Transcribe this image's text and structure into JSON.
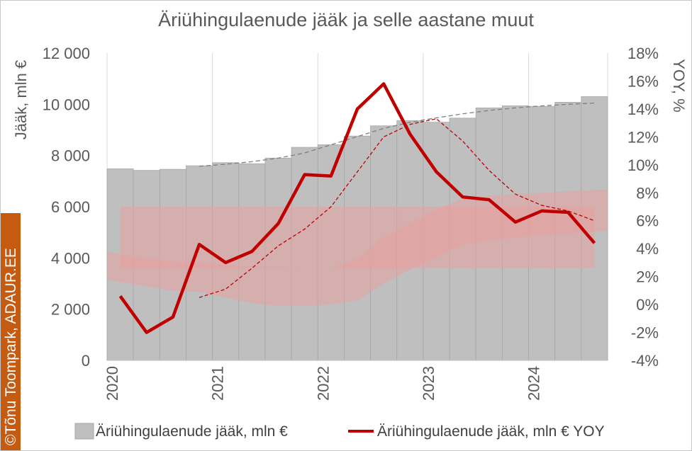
{
  "chart_data": {
    "type": "bar",
    "title": "Äriühingulaenude jääk ja selle aastane muut",
    "ylabel_left": "Jääk, mln €",
    "ylabel_right": "YOY, %",
    "ylim_left": [
      0,
      12000
    ],
    "ylim_right": [
      -4,
      18
    ],
    "left_ticks": [
      "12 000",
      "10 000",
      "8 000",
      "6 000",
      "4 000",
      "2 000",
      "0"
    ],
    "right_ticks": [
      "18%",
      "16%",
      "14%",
      "12%",
      "10%",
      "8%",
      "6%",
      "4%",
      "2%",
      "0%",
      "-2%",
      "-4%"
    ],
    "year_labels": [
      "2020",
      "2021",
      "2022",
      "2023",
      "2024"
    ],
    "quarters": [
      "2020Q1",
      "2020Q2",
      "2020Q3",
      "2020Q4",
      "2021Q1",
      "2021Q2",
      "2021Q3",
      "2021Q4",
      "2022Q1",
      "2022Q2",
      "2022Q3",
      "2022Q4",
      "2023Q1",
      "2023Q2",
      "2023Q3",
      "2023Q4",
      "2024Q1",
      "2024Q2",
      "2024Q3"
    ],
    "series": [
      {
        "name": "Äriühingulaenude jääk, mln €",
        "kind": "bar",
        "axis": "left",
        "color": "#bfbfbf",
        "values": [
          7480,
          7420,
          7460,
          7600,
          7720,
          7680,
          7900,
          8320,
          8420,
          8760,
          9160,
          9360,
          9300,
          9460,
          9860,
          9940,
          9920,
          10080,
          10300
        ]
      },
      {
        "name": "Äriühingulaenude jääk, mln € YOY",
        "kind": "line",
        "axis": "right",
        "color": "#c00000",
        "values": [
          0.6,
          -2.0,
          -0.9,
          4.3,
          3.0,
          3.8,
          5.8,
          9.3,
          9.2,
          14.0,
          15.8,
          12.2,
          9.5,
          7.7,
          7.5,
          5.9,
          6.7,
          6.6,
          4.4
        ]
      }
    ],
    "trend_left": {
      "color": "#7f7f7f",
      "x": [
        "2020Q4",
        "2021Q1",
        "2021Q2",
        "2021Q3",
        "2021Q4",
        "2022Q1",
        "2022Q2",
        "2022Q3",
        "2022Q4",
        "2023Q1",
        "2023Q2",
        "2023Q3",
        "2023Q4",
        "2024Q1",
        "2024Q2",
        "2024Q3"
      ],
      "values": [
        7580,
        7660,
        7760,
        7900,
        8100,
        8420,
        8740,
        9060,
        9300,
        9470,
        9630,
        9760,
        9860,
        9940,
        10000,
        10050
      ]
    },
    "trend_right": {
      "color": "#c00000",
      "x": [
        "2020Q4",
        "2021Q1",
        "2021Q2",
        "2021Q3",
        "2021Q4",
        "2022Q1",
        "2022Q2",
        "2022Q3",
        "2022Q4",
        "2023Q1",
        "2023Q2",
        "2023Q3",
        "2023Q4",
        "2024Q1",
        "2024Q2",
        "2024Q3"
      ],
      "values": [
        0.5,
        1.1,
        2.6,
        4.2,
        5.4,
        7.0,
        9.5,
        12.0,
        12.9,
        13.3,
        11.7,
        9.6,
        7.9,
        7.1,
        6.7,
        6.0
      ]
    },
    "band_constant": {
      "color": "#e8a0a0",
      "y_range_right": [
        2.6,
        7.0
      ],
      "x_from": "2020Q1",
      "x_to": "2024Q3"
    },
    "band_varying": {
      "color": "#e8a0a0",
      "x": [
        "2020",
        "2020Q1",
        "2020Q2",
        "2020Q3",
        "2020Q4",
        "2021Q1",
        "2021Q2",
        "2021Q3",
        "2021Q4",
        "2022Q1",
        "2022Q2",
        "2022Q3",
        "2022Q4",
        "2023Q1",
        "2023Q2",
        "2023Q3",
        "2023Q4",
        "2024Q1",
        "2024Q2",
        "2024Q3",
        "2024end"
      ],
      "upper": [
        3.8,
        3.6,
        3.3,
        3.1,
        3.0,
        2.8,
        2.7,
        2.7,
        2.6,
        2.6,
        3.3,
        4.8,
        5.8,
        6.8,
        7.6,
        7.8,
        7.9,
        8.0,
        8.1,
        8.2,
        8.2
      ],
      "lower": [
        1.8,
        1.6,
        1.3,
        1.0,
        0.9,
        0.5,
        0.1,
        -0.1,
        -0.1,
        0.0,
        0.3,
        1.5,
        2.5,
        3.4,
        4.3,
        4.6,
        4.8,
        5.0,
        5.1,
        5.2,
        5.3
      ]
    },
    "legend_position": "bottom",
    "grid": {
      "vertical": true,
      "horizontal": false
    }
  },
  "copyright": "©Tõnu Toompark, ADAUR.EE"
}
